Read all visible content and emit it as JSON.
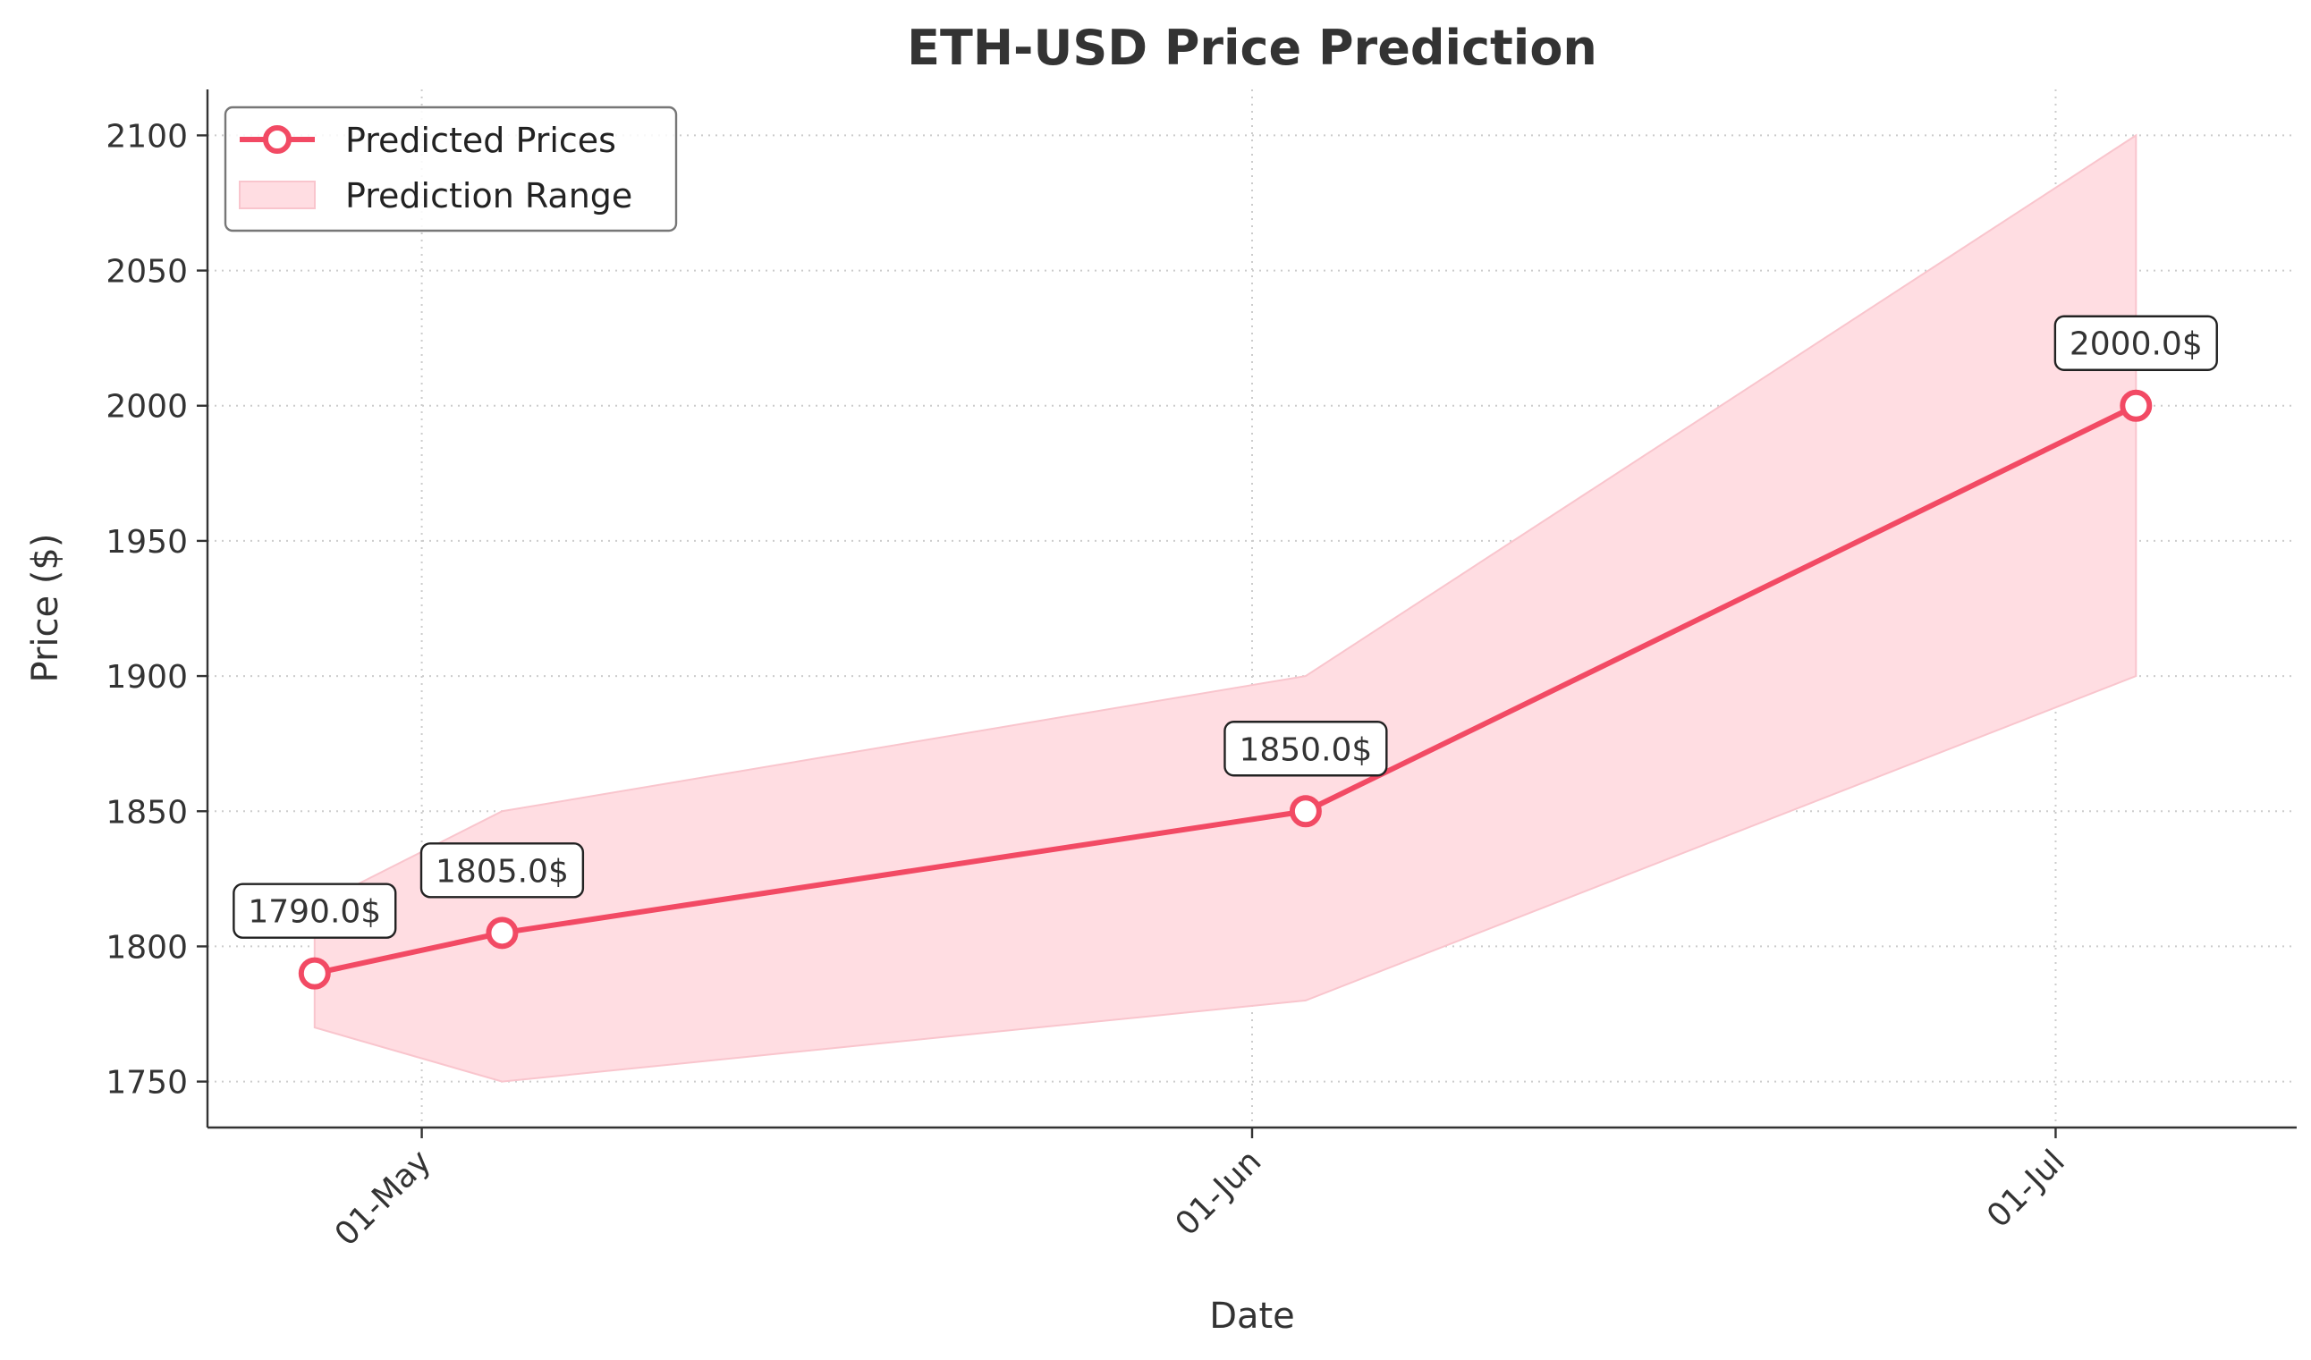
{
  "chart_data": {
    "type": "line",
    "title": "ETH-USD Price Prediction",
    "xlabel": "Date",
    "ylabel": "Price ($)",
    "x_dates": [
      "2023-04-27",
      "2023-05-04",
      "2023-06-03",
      "2023-07-04"
    ],
    "xlim": [
      "2023-04-23",
      "2023-07-10"
    ],
    "ylim": [
      1733,
      2117
    ],
    "yticks": [
      1750,
      1800,
      1850,
      1900,
      1950,
      2000,
      2050,
      2100
    ],
    "xticks": [
      {
        "date": "2023-05-01",
        "label": "01-May"
      },
      {
        "date": "2023-06-01",
        "label": "01-Jun"
      },
      {
        "date": "2023-07-01",
        "label": "01-Jul"
      }
    ],
    "grid": true,
    "legend_position": "top-left",
    "series": [
      {
        "name": "Predicted Prices",
        "values": [
          1790.0,
          1805.0,
          1850.0,
          2000.0
        ],
        "color": "#f24a64"
      }
    ],
    "range": {
      "name": "Prediction Range",
      "lower": [
        1770,
        1750,
        1780,
        1900
      ],
      "upper": [
        1815,
        1850,
        1900,
        2100
      ],
      "color": "#ffdde2"
    },
    "data_labels": [
      "1790.0$",
      "1805.0$",
      "1850.0$",
      "2000.0$"
    ]
  }
}
